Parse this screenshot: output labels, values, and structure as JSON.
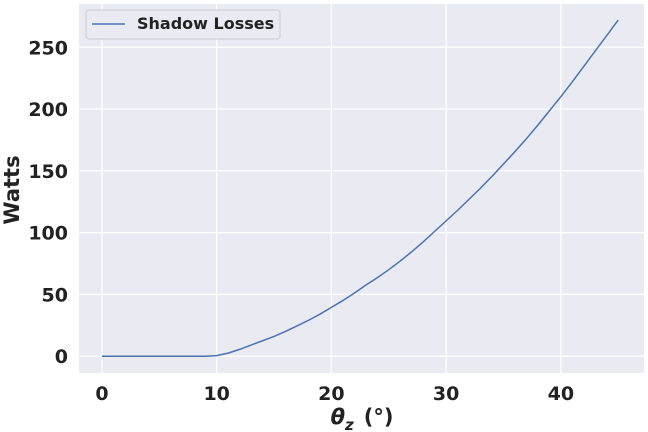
{
  "chart_data": {
    "type": "line",
    "xlabel": "θz  (°)",
    "ylabel": "Watts",
    "xlim": [
      -2,
      47.25
    ],
    "ylim": [
      -13.6,
      285
    ],
    "xticks": [
      0,
      10,
      20,
      30,
      40
    ],
    "yticks": [
      0,
      50,
      100,
      150,
      200,
      250
    ],
    "grid": true,
    "legend_position": "top-left",
    "colors": {
      "background": "#eaeaf2",
      "grid": "#ffffff",
      "line": "#4c72b0",
      "text": "#222222"
    },
    "series": [
      {
        "name": "Shadow Losses",
        "x": [
          0,
          1,
          2,
          3,
          4,
          5,
          6,
          7,
          8,
          9,
          10,
          11,
          12,
          13,
          14,
          15,
          16,
          17,
          18,
          19,
          20,
          21,
          22,
          23,
          24,
          25,
          26,
          27,
          28,
          29,
          30,
          31,
          32,
          33,
          34,
          35,
          36,
          37,
          38,
          39,
          40,
          41,
          42,
          43,
          44,
          45
        ],
        "values": [
          0,
          0,
          0,
          0,
          0,
          0,
          0,
          0,
          0,
          0,
          0.5,
          2.5,
          5.5,
          9,
          12.5,
          16,
          20,
          24.5,
          29,
          34,
          39.5,
          45,
          51,
          57.5,
          63.5,
          70,
          77,
          84.5,
          92.5,
          101,
          109.5,
          118,
          127,
          136,
          145.5,
          155.5,
          165.5,
          176,
          187,
          198.5,
          210,
          222,
          234.5,
          247,
          259.5,
          272
        ]
      }
    ]
  }
}
